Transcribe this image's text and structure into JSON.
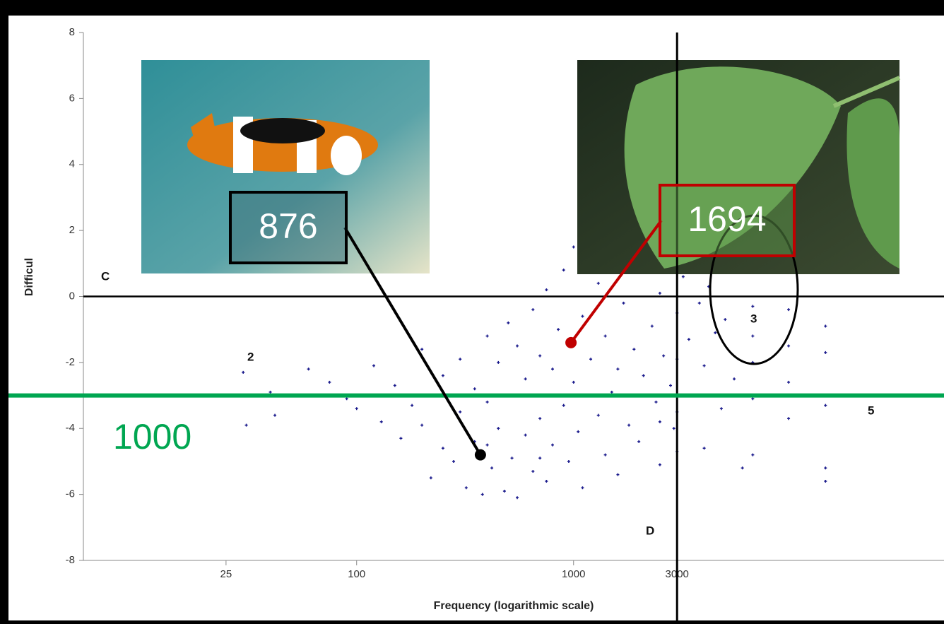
{
  "chart_data": {
    "type": "scatter",
    "xlabel": "Frequency (logarithmic scale)",
    "ylabel": "Difficul",
    "xscale": "log",
    "xlim": [
      5.5,
      51000
    ],
    "ylim": [
      -8,
      8
    ],
    "xticks": [
      25,
      100,
      1000,
      3000
    ],
    "yticks": [
      -8,
      -6,
      -4,
      -2,
      0,
      2,
      4,
      6,
      8
    ],
    "color": "#1a1a8c",
    "x": [
      30,
      31,
      40,
      42,
      60,
      75,
      90,
      100,
      120,
      130,
      150,
      160,
      180,
      200,
      200,
      220,
      250,
      250,
      280,
      300,
      300,
      320,
      350,
      350,
      380,
      400,
      400,
      420,
      450,
      450,
      480,
      500,
      500,
      520,
      550,
      550,
      600,
      600,
      650,
      650,
      700,
      700,
      750,
      750,
      800,
      800,
      850,
      900,
      900,
      950,
      1000,
      1000,
      1050,
      1100,
      1100,
      1200,
      1200,
      1300,
      1300,
      1400,
      1400,
      1500,
      1500,
      1600,
      1700,
      1800,
      1800,
      1900,
      2000,
      2000,
      2100,
      2200,
      2300,
      2400,
      2500,
      2500,
      2600,
      2700,
      2800,
      2900,
      3000,
      3000,
      3000,
      3200,
      3400,
      3600,
      3800,
      4000,
      4000,
      4200,
      4500,
      4800,
      5000,
      5500,
      6000,
      6700,
      6700,
      6700,
      6700,
      6700,
      9800,
      9800,
      9800,
      9800,
      14500,
      14500,
      14500,
      14500,
      14500,
      3000,
      3000,
      2500,
      1600,
      700,
      400
    ],
    "values": [
      -2.3,
      -3.9,
      -2.9,
      -3.6,
      -2.2,
      -2.6,
      -3.1,
      -3.4,
      -2.1,
      -3.8,
      -2.7,
      -4.3,
      -3.3,
      -1.6,
      -3.9,
      -5.5,
      -2.4,
      -4.6,
      -5.0,
      -1.9,
      -3.5,
      -5.8,
      -2.8,
      -4.4,
      -6.0,
      -1.2,
      -3.2,
      -5.2,
      -2.0,
      -4.0,
      -5.9,
      -0.8,
      -3.0,
      -4.9,
      -1.5,
      -6.1,
      -2.5,
      -4.2,
      -0.4,
      -5.3,
      -1.8,
      -3.7,
      0.2,
      -5.6,
      -2.2,
      -4.5,
      -1.0,
      0.8,
      -3.3,
      -5.0,
      1.5,
      -2.6,
      -4.1,
      -0.6,
      -5.8,
      2.2,
      -1.9,
      -3.6,
      0.4,
      -4.8,
      -1.2,
      1.8,
      -2.9,
      -5.4,
      -0.2,
      -3.9,
      2.5,
      -1.6,
      0.9,
      -4.4,
      -2.4,
      1.2,
      -0.9,
      -3.2,
      0.1,
      -5.1,
      -1.8,
      1.6,
      -2.7,
      -4.0,
      -0.5,
      -1.9,
      -3.5,
      0.6,
      -1.3,
      -3.0,
      -0.2,
      -2.1,
      -4.6,
      0.3,
      -1.1,
      -3.4,
      -0.7,
      -2.5,
      -5.2,
      -0.3,
      -1.2,
      -2.0,
      -3.1,
      -4.8,
      -0.4,
      -1.5,
      -2.6,
      -3.7,
      -0.9,
      -1.7,
      -3.3,
      -5.2,
      -5.6,
      0.8,
      -4.7,
      -3.8,
      -2.2,
      -4.9,
      -4.5
    ],
    "ref_lines": {
      "x": 3000,
      "y": 0
    },
    "threshold": {
      "label": "1000",
      "y": -3,
      "color": "#00a651"
    },
    "region_labels": [
      "C",
      "2",
      "3",
      "5",
      "D"
    ],
    "annotations": [
      {
        "label": "876",
        "x": 372,
        "y": -4.8,
        "color": "#000000"
      },
      {
        "label": "1694",
        "x": 973,
        "y": -1.4,
        "color": "#c00000"
      }
    ]
  }
}
